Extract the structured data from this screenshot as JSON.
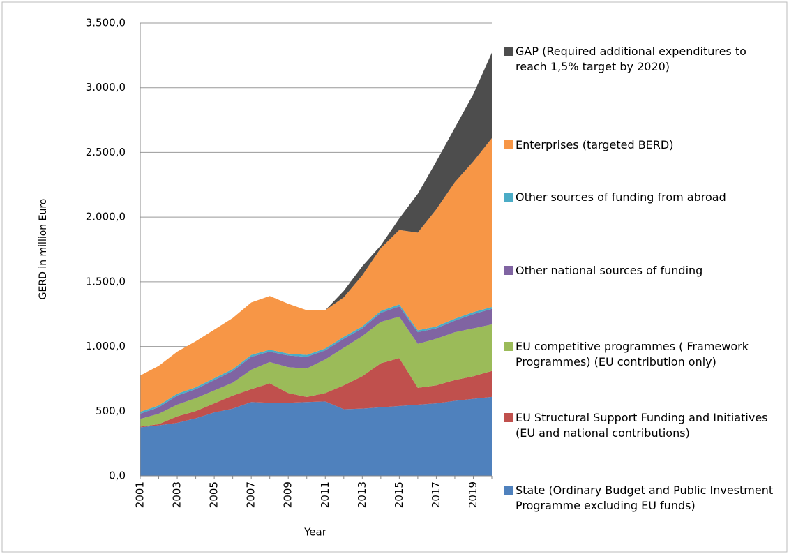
{
  "chart_data": {
    "type": "stacked_area",
    "xlabel": "Year",
    "ylabel": "GERD in million Euro",
    "categories": [
      "2001",
      null,
      "2003",
      null,
      "2005",
      null,
      "2007",
      null,
      "2009",
      null,
      "2011",
      null,
      "2013",
      null,
      "2015",
      null,
      "2017",
      null,
      "2019",
      null
    ],
    "ylim": [
      0,
      3500
    ],
    "yticks": [
      {
        "value": 0,
        "label": "0,0"
      },
      {
        "value": 500,
        "label": "500,0"
      },
      {
        "value": 1000,
        "label": "1.000,0"
      },
      {
        "value": 1500,
        "label": "1.500,0"
      },
      {
        "value": 2000,
        "label": "2.000,0"
      },
      {
        "value": 2500,
        "label": "2.500,0"
      },
      {
        "value": 3000,
        "label": "3.000,0"
      },
      {
        "value": 3500,
        "label": "3.500,0"
      }
    ],
    "grid": true,
    "series": [
      {
        "name": "State (Ordinary Budget and Public Investment Programme excluding EU funds)",
        "color": "#4f81bd",
        "values": [
          375,
          390,
          410,
          445,
          490,
          520,
          570,
          565,
          565,
          570,
          575,
          515,
          520,
          530,
          540,
          550,
          560,
          580,
          595,
          610
        ]
      },
      {
        "name": "EU Structural Support Funding and Initiatives (EU and national contributions)",
        "color": "#c0504d",
        "values": [
          5,
          10,
          50,
          55,
          70,
          100,
          100,
          150,
          75,
          40,
          65,
          185,
          250,
          340,
          370,
          130,
          140,
          160,
          175,
          200
        ]
      },
      {
        "name": "EU competitive programmes ( Framework Programmes) (EU contribution only)",
        "color": "#9bbb59",
        "values": [
          60,
          80,
          90,
          100,
          100,
          100,
          150,
          165,
          200,
          220,
          260,
          290,
          310,
          320,
          320,
          340,
          360,
          370,
          370,
          360
        ]
      },
      {
        "name": "Other national sources of funding",
        "color": "#8064a2",
        "values": [
          40,
          50,
          70,
          70,
          80,
          90,
          100,
          80,
          90,
          90,
          70,
          70,
          60,
          70,
          80,
          90,
          80,
          90,
          110,
          120
        ]
      },
      {
        "name": "Other sources of funding from abroad",
        "color": "#4bacc6",
        "values": [
          15,
          15,
          15,
          15,
          15,
          15,
          15,
          15,
          15,
          15,
          15,
          15,
          15,
          15,
          15,
          15,
          15,
          15,
          15,
          15
        ]
      },
      {
        "name": "Enterprises (targeted BERD)",
        "color": "#f79646",
        "values": [
          280,
          305,
          325,
          355,
          375,
          395,
          405,
          415,
          385,
          345,
          295,
          305,
          395,
          485,
          575,
          755,
          905,
          1055,
          1165,
          1305
        ]
      },
      {
        "name": "GAP (Required additional expenditures to reach 1,5% target by 2020)",
        "color": "#4d4d4d",
        "values": [
          0,
          0,
          0,
          0,
          0,
          0,
          0,
          0,
          0,
          0,
          0,
          50,
          70,
          20,
          90,
          300,
          370,
          420,
          520,
          660
        ]
      }
    ]
  }
}
